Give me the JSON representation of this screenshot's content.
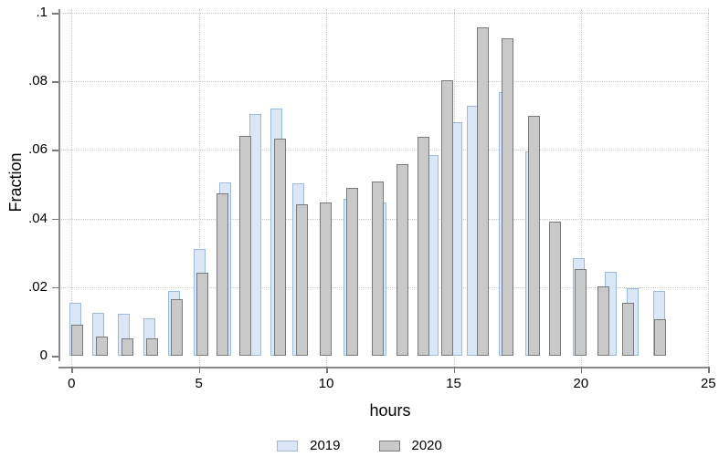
{
  "chart_data": {
    "type": "bar",
    "title": "",
    "xlabel": "hours",
    "ylabel": "Fraction",
    "categories": [
      0,
      1,
      2,
      3,
      4,
      5,
      6,
      7,
      8,
      9,
      10,
      11,
      12,
      13,
      14,
      15,
      16,
      17,
      18,
      19,
      20,
      21,
      22,
      23
    ],
    "series": [
      {
        "name": "2019",
        "color": "#dbe7f6",
        "border_color": "#9fb9d8",
        "values": [
          0.0155,
          0.0125,
          0.0122,
          0.011,
          0.0188,
          0.031,
          0.0505,
          0.0705,
          0.0722,
          0.0503,
          0.0442,
          0.0457,
          0.0448,
          0.0553,
          0.0585,
          0.068,
          0.073,
          0.0768,
          0.0597,
          0.0386,
          0.0285,
          0.0246,
          0.0198,
          0.019
        ]
      },
      {
        "name": "2020",
        "color": "#c9c9c9",
        "border_color": "#7a7a7a",
        "values": [
          0.009,
          0.0055,
          0.005,
          0.005,
          0.0165,
          0.0243,
          0.0473,
          0.064,
          0.0633,
          0.0442,
          0.0448,
          0.0489,
          0.0507,
          0.0558,
          0.0638,
          0.0802,
          0.0957,
          0.0925,
          0.07,
          0.039,
          0.0253,
          0.0202,
          0.0153,
          0.0106
        ]
      }
    ],
    "xlim": [
      0,
      25
    ],
    "ylim": [
      0,
      0.1
    ],
    "x_ticks": [
      0,
      5,
      10,
      15,
      20,
      25
    ],
    "x_tick_labels": [
      "0",
      "5",
      "10",
      "15",
      "20",
      "25"
    ],
    "y_ticks": [
      0,
      0.02,
      0.04,
      0.06,
      0.08,
      0.1
    ],
    "y_tick_labels": [
      "0",
      ".02",
      ".04",
      ".06",
      ".08",
      ".1"
    ],
    "grid": "dotted horizontal and vertical at ticks",
    "legend_position": "bottom-center",
    "bar_style": "overlapping pairs, 2020 drawn on top of 2019"
  }
}
